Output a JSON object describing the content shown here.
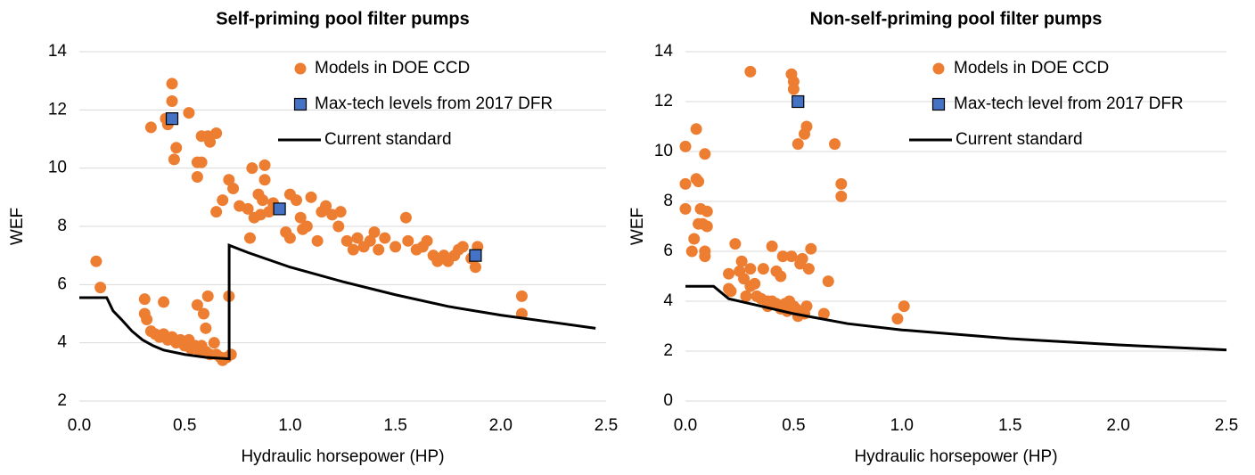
{
  "chart_data": [
    {
      "type": "scatter",
      "title": "Self-priming pool filter pumps",
      "x_label": "Hydraulic horsepower (HP)",
      "y_label": "WEF",
      "xlim": [
        0,
        2.5
      ],
      "ylim": [
        2,
        14
      ],
      "xticks": [
        {
          "value": 0,
          "label": "0.0"
        },
        0.5,
        {
          "value": 1,
          "label": "1.0"
        },
        1.5,
        {
          "value": 2,
          "label": "2.0"
        },
        2.5
      ],
      "yticks": [
        2,
        4,
        6,
        8,
        10,
        12,
        14
      ],
      "grid": true,
      "series": [
        {
          "name": "Models in DOE CCD",
          "type": "scatter",
          "marker": "circle",
          "color": "#ED7D31",
          "x": [
            0.08,
            0.1,
            0.31,
            0.31,
            0.32,
            0.34,
            0.36,
            0.38,
            0.4,
            0.42,
            0.44,
            0.46,
            0.48,
            0.5,
            0.52,
            0.53,
            0.55,
            0.57,
            0.58,
            0.6,
            0.62,
            0.64,
            0.65,
            0.67,
            0.68,
            0.7,
            0.72,
            0.56,
            0.59,
            0.61,
            0.6,
            0.71,
            0.34,
            0.4,
            0.41,
            0.42,
            0.44,
            0.44,
            0.46,
            0.45,
            0.52,
            0.56,
            0.56,
            0.58,
            0.58,
            0.61,
            0.62,
            0.65,
            0.65,
            0.68,
            0.71,
            0.73,
            0.76,
            0.8,
            0.81,
            0.82,
            0.83,
            0.85,
            0.86,
            0.87,
            0.88,
            0.88,
            0.9,
            0.92,
            0.98,
            1.0,
            1.0,
            1.03,
            1.05,
            1.06,
            1.08,
            1.1,
            1.13,
            1.15,
            1.17,
            1.2,
            1.23,
            1.24,
            1.27,
            1.3,
            1.32,
            1.35,
            1.38,
            1.4,
            1.42,
            1.45,
            1.5,
            1.55,
            1.56,
            1.6,
            1.63,
            1.65,
            1.68,
            1.7,
            1.73,
            1.75,
            1.78,
            1.8,
            1.82,
            1.86,
            1.88,
            1.89,
            2.1,
            2.1
          ],
          "values": [
            6.8,
            5.9,
            5.5,
            5.0,
            4.8,
            4.4,
            4.3,
            4.2,
            4.3,
            4.1,
            4.2,
            4.0,
            4.1,
            3.9,
            4.1,
            3.8,
            3.9,
            3.7,
            3.9,
            3.7,
            3.6,
            4.0,
            3.6,
            3.5,
            3.4,
            3.5,
            3.6,
            5.3,
            5.0,
            5.6,
            4.5,
            5.6,
            11.4,
            5.4,
            11.7,
            11.5,
            12.9,
            12.3,
            10.7,
            10.3,
            11.9,
            10.2,
            9.7,
            10.2,
            11.1,
            11.1,
            10.9,
            11.2,
            8.5,
            8.9,
            9.6,
            9.3,
            8.7,
            8.6,
            7.6,
            10.0,
            8.3,
            9.1,
            8.4,
            8.9,
            10.1,
            9.6,
            8.5,
            8.8,
            7.8,
            9.1,
            7.6,
            8.9,
            8.3,
            7.9,
            8.0,
            9.0,
            7.5,
            8.5,
            8.7,
            8.4,
            8.0,
            8.5,
            7.5,
            7.2,
            7.6,
            7.3,
            7.5,
            7.8,
            7.2,
            7.6,
            7.3,
            8.3,
            7.5,
            7.2,
            7.3,
            7.5,
            7.0,
            6.8,
            7.0,
            6.8,
            7.0,
            7.2,
            7.3,
            6.9,
            6.6,
            7.3,
            5.6,
            5.0
          ]
        },
        {
          "name": "Max-tech levels from 2017 DFR",
          "type": "scatter",
          "marker": "square",
          "color": "#4472C4",
          "x": [
            0.44,
            0.95,
            1.88
          ],
          "values": [
            11.7,
            8.6,
            7.0
          ]
        },
        {
          "name": "Current standard",
          "type": "line",
          "color": "#000000",
          "x": [
            0,
            0.13,
            0.16,
            0.2,
            0.25,
            0.3,
            0.35,
            0.4,
            0.5,
            0.6,
            0.711,
            0.711,
            0.8,
            1.0,
            1.25,
            1.5,
            1.75,
            2.0,
            2.25,
            2.45
          ],
          "values": [
            5.55,
            5.55,
            5.1,
            4.8,
            4.4,
            4.1,
            3.9,
            3.75,
            3.6,
            3.5,
            3.45,
            7.35,
            7.1,
            6.6,
            6.1,
            5.65,
            5.25,
            4.95,
            4.7,
            4.5
          ]
        }
      ]
    },
    {
      "type": "scatter",
      "title": "Non-self-priming pool filter pumps",
      "x_label": "Hydraulic horsepower (HP)",
      "y_label": "WEF",
      "xlim": [
        0,
        2.5
      ],
      "ylim": [
        0,
        14
      ],
      "xticks": [
        {
          "value": 0,
          "label": "0.0"
        },
        0.5,
        {
          "value": 1,
          "label": "1.0"
        },
        1.5,
        {
          "value": 2,
          "label": "2.0"
        },
        2.5
      ],
      "yticks": [
        0,
        2,
        4,
        6,
        8,
        10,
        12,
        14
      ],
      "grid": true,
      "series": [
        {
          "name": "Models in DOE CCD",
          "type": "scatter",
          "marker": "circle",
          "color": "#ED7D31",
          "x": [
            0.0,
            0.0,
            0.0,
            0.05,
            0.05,
            0.06,
            0.04,
            0.03,
            0.06,
            0.07,
            0.09,
            0.08,
            0.1,
            0.1,
            0.09,
            0.09,
            0.23,
            0.2,
            0.2,
            0.21,
            0.25,
            0.26,
            0.27,
            0.28,
            0.3,
            0.3,
            0.32,
            0.33,
            0.35,
            0.36,
            0.38,
            0.38,
            0.4,
            0.4,
            0.42,
            0.42,
            0.44,
            0.44,
            0.45,
            0.46,
            0.47,
            0.48,
            0.49,
            0.5,
            0.51,
            0.52,
            0.53,
            0.54,
            0.55,
            0.56,
            0.57,
            0.58,
            0.64,
            0.66,
            0.3,
            0.49,
            0.5,
            0.5,
            0.52,
            0.55,
            0.56,
            0.69,
            0.72,
            0.72,
            0.98,
            1.01
          ],
          "values": [
            10.2,
            8.7,
            7.7,
            10.9,
            8.9,
            8.8,
            6.5,
            6.0,
            7.1,
            7.7,
            9.9,
            7.1,
            7.6,
            7.0,
            6.0,
            5.8,
            6.3,
            5.1,
            4.5,
            4.4,
            5.2,
            5.6,
            4.9,
            4.2,
            5.3,
            4.6,
            4.7,
            4.2,
            4.1,
            5.3,
            4.0,
            3.8,
            6.2,
            4.0,
            5.2,
            3.9,
            5.0,
            3.7,
            5.8,
            3.9,
            3.6,
            4.0,
            5.8,
            3.8,
            3.7,
            3.4,
            5.5,
            5.7,
            3.5,
            3.8,
            5.3,
            6.1,
            3.5,
            4.8,
            13.2,
            13.1,
            12.8,
            12.5,
            10.3,
            10.7,
            11.0,
            10.3,
            8.7,
            8.2,
            3.3,
            3.8
          ]
        },
        {
          "name": "Max-tech level from 2017 DFR",
          "type": "scatter",
          "marker": "square",
          "color": "#4472C4",
          "x": [
            0.52
          ],
          "values": [
            12.0
          ]
        },
        {
          "name": "Current standard",
          "type": "line",
          "color": "#000000",
          "x": [
            0,
            0.13,
            0.2,
            0.3,
            0.5,
            0.75,
            1.0,
            1.5,
            2.0,
            2.5
          ],
          "values": [
            4.6,
            4.6,
            4.1,
            3.9,
            3.5,
            3.1,
            2.85,
            2.5,
            2.25,
            2.05
          ]
        }
      ]
    }
  ]
}
